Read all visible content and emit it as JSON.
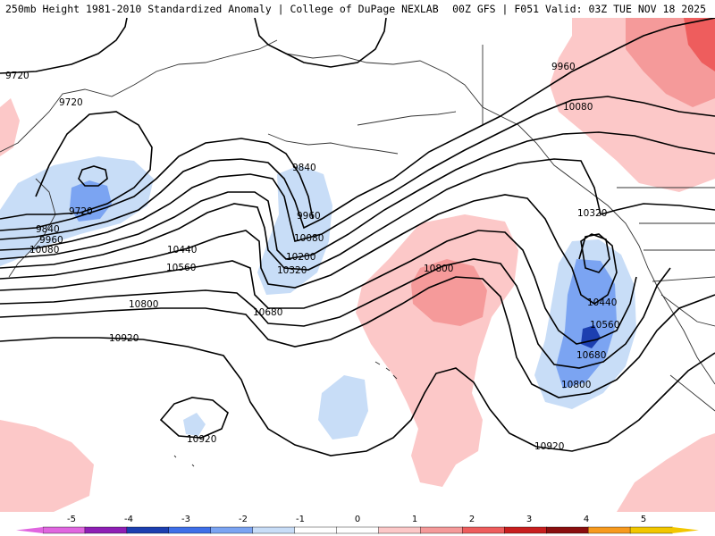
{
  "header": {
    "left_title": "250mb Height 1981-2010 Standardized Anomaly | College of DuPage NEXLAB",
    "right_title": "00Z GFS | F051 Valid: 03Z TUE NOV 18 2025"
  },
  "colorbar": {
    "ticks": [
      "-5",
      "-4",
      "-3",
      "-2",
      "-1",
      "0",
      "1",
      "2",
      "3",
      "4",
      "5"
    ],
    "colors": [
      "#e066e0",
      "#8e1fb5",
      "#1c3fb0",
      "#3f6fe8",
      "#7ba4f2",
      "#c8ddf7",
      "#ffffff",
      "#ffffff",
      "#fcc8c8",
      "#f59a9a",
      "#ee5d5d",
      "#c81e1e",
      "#8a0e0e",
      "#f79a1e",
      "#f2c700"
    ]
  },
  "contours": {
    "l9720_a": "9720",
    "l9720_b": "9720",
    "l9720_c": "9720",
    "l9840_a": "9840",
    "l9840_b": "9840",
    "l9960_a": "9960",
    "l9960_b": "9960",
    "l9960_c": "9960",
    "l10080_a": "10080",
    "l10080_b": "10080",
    "l10080_c": "10080",
    "l10200": "10200",
    "l10320_a": "10320",
    "l10320_b": "10320",
    "l10440_a": "10440",
    "l10440_b": "10440",
    "l10560_a": "10560",
    "l10560_b": "10560",
    "l10680_a": "10680",
    "l10680_b": "10680",
    "l10800_a": "10800",
    "l10800_b": "10800",
    "l10800_c": "10800",
    "l10920_a": "10920",
    "l10920_b": "10920",
    "l10920_c": "10920"
  },
  "anomaly_colors": {
    "neg1": "#c8ddf7",
    "neg2": "#7ba4f2",
    "neg3": "#3f6fe8",
    "neg4": "#1c3fb0",
    "pos1": "#fcc8c8",
    "pos2": "#f59a9a",
    "pos3": "#ee5d5d"
  }
}
